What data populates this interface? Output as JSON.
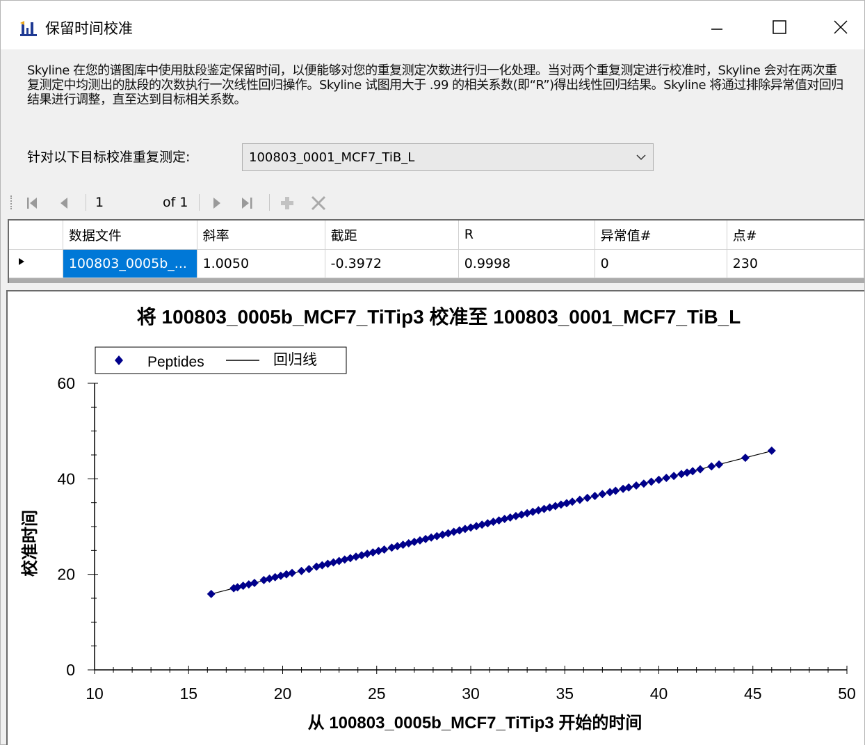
{
  "window": {
    "title": "保留时间校准"
  },
  "description": "Skyline 在您的谱图库中使用肽段鉴定保留时间，以便能够对您的重复测定次数进行归一化处理。当对两个重复测定进行校准时，Skyline 会对在两次重复测定中均测出的肽段的次数执行一次线性回归操作。Skyline 试图用大于 .99 的相关系数(即“R”)得出线性回归结果。Skyline 将通过排除异常值对回归结果进行调整，直至达到目标相关系数。",
  "target": {
    "label": "针对以下目标校准重复测定:",
    "selected": "100803_0001_MCF7_TiB_L"
  },
  "navigator": {
    "position": "1",
    "of_label": "of 1"
  },
  "grid": {
    "columns": [
      "数据文件",
      "斜率",
      "截距",
      "R",
      "异常值#",
      "点#"
    ],
    "rows": [
      {
        "file": "100803_0005b_...",
        "slope": "1.0050",
        "intercept": "-0.3972",
        "r": "0.9998",
        "outliers": "0",
        "points": "230"
      }
    ]
  },
  "chart_data": {
    "type": "scatter",
    "title": "将 100803_0005b_MCF7_TiTip3 校准至 100803_0001_MCF7_TiB_L",
    "xlabel": "从 100803_0005b_MCF7_TiTip3 开始的时间",
    "ylabel": "校准时间",
    "xlim": [
      10,
      50
    ],
    "ylim": [
      0,
      60
    ],
    "xticks": [
      10,
      15,
      20,
      25,
      30,
      35,
      40,
      45,
      50
    ],
    "yticks": [
      0,
      20,
      40,
      60
    ],
    "legend": {
      "position": "top-left",
      "entries": [
        "Peptides",
        "回归线"
      ]
    },
    "series": [
      {
        "name": "Peptides",
        "color": "#00008b",
        "marker": "diamond",
        "x": [
          16.2,
          17.4,
          17.6,
          17.9,
          18.2,
          18.5,
          19.0,
          19.3,
          19.6,
          19.9,
          20.2,
          20.5,
          21.0,
          21.4,
          21.8,
          22.1,
          22.4,
          22.7,
          23.0,
          23.3,
          23.6,
          23.9,
          24.2,
          24.5,
          24.8,
          25.1,
          25.4,
          25.8,
          26.1,
          26.4,
          26.7,
          27.0,
          27.3,
          27.6,
          27.9,
          28.2,
          28.5,
          28.8,
          29.1,
          29.4,
          29.7,
          30.0,
          30.3,
          30.6,
          30.9,
          31.2,
          31.5,
          31.8,
          32.1,
          32.4,
          32.7,
          33.0,
          33.3,
          33.6,
          33.9,
          34.2,
          34.5,
          34.8,
          35.1,
          35.4,
          35.8,
          36.2,
          36.6,
          37.0,
          37.4,
          37.7,
          38.1,
          38.4,
          38.8,
          39.2,
          39.6,
          40.0,
          40.4,
          40.8,
          41.2,
          41.5,
          41.8,
          42.2,
          42.8,
          43.2,
          44.6,
          46.0
        ],
        "y": [
          15.9,
          17.1,
          17.3,
          17.6,
          17.9,
          18.2,
          18.8,
          19.1,
          19.4,
          19.7,
          20.0,
          20.3,
          20.7,
          21.1,
          21.6,
          21.9,
          22.2,
          22.5,
          22.8,
          23.1,
          23.4,
          23.7,
          24.0,
          24.3,
          24.6,
          24.9,
          25.2,
          25.6,
          25.9,
          26.2,
          26.5,
          26.8,
          27.1,
          27.4,
          27.7,
          28.0,
          28.3,
          28.6,
          28.9,
          29.2,
          29.5,
          29.8,
          30.1,
          30.4,
          30.7,
          31.0,
          31.3,
          31.6,
          31.9,
          32.2,
          32.5,
          32.8,
          33.1,
          33.4,
          33.7,
          34.0,
          34.3,
          34.6,
          34.9,
          35.2,
          35.6,
          36.0,
          36.4,
          36.8,
          37.2,
          37.5,
          37.9,
          38.2,
          38.6,
          39.0,
          39.4,
          39.8,
          40.2,
          40.6,
          41.0,
          41.3,
          41.6,
          42.0,
          42.6,
          43.0,
          44.4,
          45.9
        ]
      },
      {
        "name": "回归线",
        "color": "#000000",
        "line": {
          "slope": 1.005,
          "intercept": -0.3972,
          "x_from": 16.2,
          "x_to": 46.0
        }
      }
    ]
  }
}
